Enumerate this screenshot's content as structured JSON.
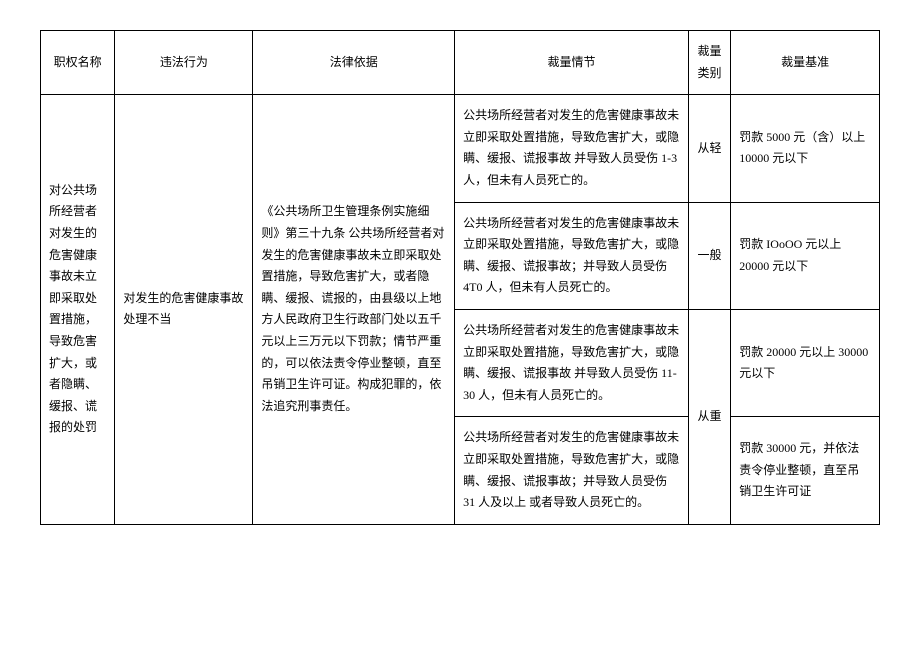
{
  "headers": {
    "col1": "职权名称",
    "col2": "违法行为",
    "col3": "法律依据",
    "col4": "裁量情节",
    "col5": "裁量类别",
    "col6": "裁量基准"
  },
  "body": {
    "authority_name": "对公共场所经营者对发生的危害健康事故未立即采取处置措施，导致危害扩大，或者隐瞒、缓报、谎报的处罚",
    "illegal_act": "对发生的危害健康事故处理不当",
    "legal_basis": "《公共场所卫生管理条例实施细则》第三十九条 公共场所经营者对发生的危害健康事故未立即采取处置措施，导致危害扩大，或者隐瞒、缓报、谎报的，由县级以上地方人民政府卫生行政部门处以五千元以上三万元以下罚款；情节严重的，可以依法责令停业整顿，直至吊销卫生许可证。构成犯罪的，依法追究刑事责任。",
    "rows": [
      {
        "circumstance": "公共场所经营者对发生的危害健康事故未立即采取处置措施，导致危害扩大，或隐瞒、缓报、谎报事故 并导致人员受伤 1-3 人，但未有人员死亡的。",
        "type": "从轻",
        "standard": "罚款 5000 元（含）以上 10000 元以下"
      },
      {
        "circumstance": "公共场所经营者对发生的危害健康事故未立即采取处置措施，导致危害扩大，或隐瞒、缓报、谎报事故；并导致人员受伤 4T0 人，但未有人员死亡的。",
        "type": "一般",
        "standard": "罚款 IOoOO 元以上 20000 元以下"
      },
      {
        "circumstance": "公共场所经营者对发生的危害健康事故未立即采取处置措施，导致危害扩大，或隐瞒、缓报、谎报事故 并导致人员受伤 11-30 人，但未有人员死亡的。",
        "type": "从重",
        "standard": "罚款 20000 元以上 30000 元以下"
      },
      {
        "circumstance": "公共场所经营者对发生的危害健康事故未立即采取处置措施，导致危害扩大，或隐瞒、缓报、谎报事故；并导致人员受伤 31 人及以上 或者导致人员死亡的。",
        "type": "",
        "standard": "罚款 30000 元，并依法责令停业整顿，直至吊销卫生许可证"
      }
    ]
  }
}
